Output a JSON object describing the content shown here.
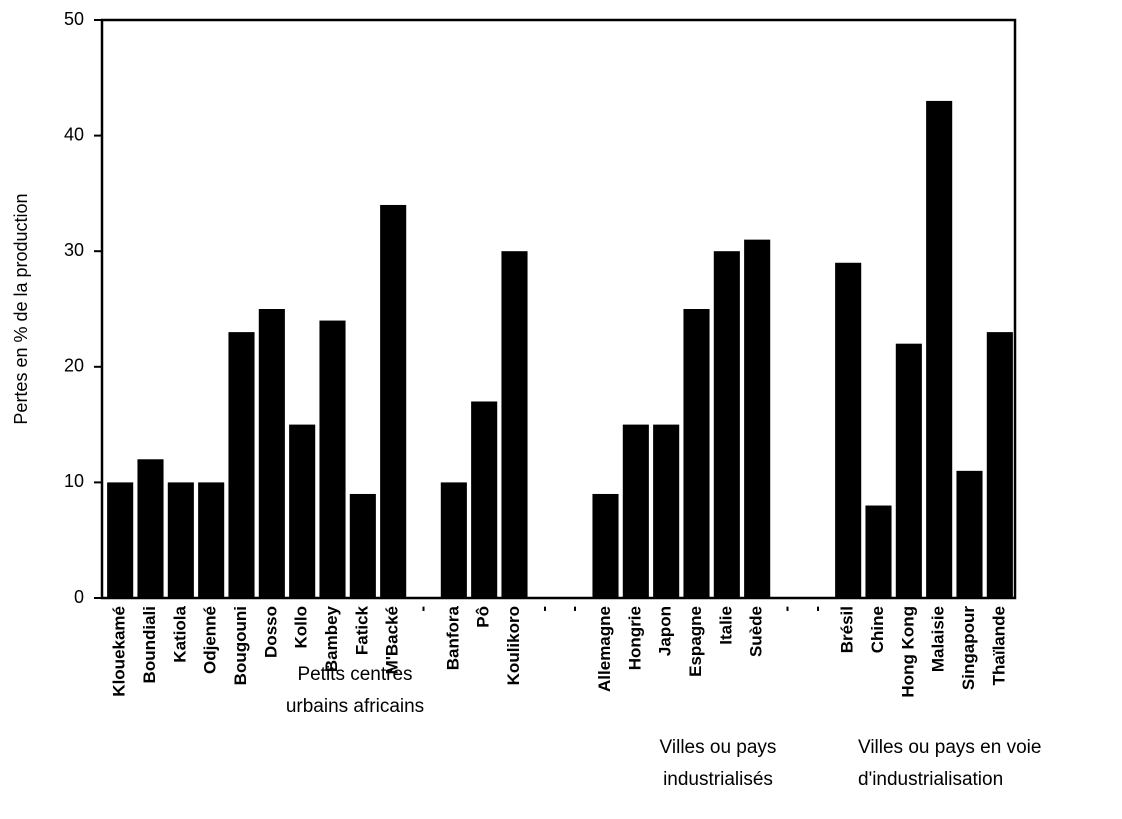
{
  "chart_data": {
    "type": "bar",
    "y_label": "Pertes en % de la production",
    "categories": [
      "Klouekamé",
      "Boundiali",
      "Katiola",
      "Odjenné",
      "Bougouni",
      "Dosso",
      "Kollo",
      "Bambey",
      "Fatick",
      "M'Backé",
      "-",
      "Banfora",
      "Pô",
      "Koulikoro",
      "-",
      "-",
      "Allemagne",
      "Hongrie",
      "Japon",
      "Espagne",
      "Italie",
      "Suède",
      "-",
      "-",
      "Brésil",
      "Chine",
      "Hong Kong",
      "Malaisie",
      "Singapour",
      "Thaïlande"
    ],
    "values": [
      10,
      12,
      10,
      10,
      23,
      25,
      15,
      24,
      9,
      34,
      null,
      10,
      17,
      30,
      null,
      null,
      9,
      15,
      15,
      25,
      30,
      31,
      null,
      null,
      29,
      8,
      22,
      43,
      11,
      23
    ],
    "color": "#000000",
    "ylim": [
      0,
      50
    ],
    "yticks": [
      0,
      10,
      20,
      30,
      40,
      50
    ],
    "grid": false,
    "annotations": [
      {
        "lines": [
          "Petits  centres",
          "urbains  africains"
        ]
      },
      {
        "lines": [
          "Villes ou pays",
          "industrialisés"
        ]
      },
      {
        "lines": [
          "Villes ou pays en voie",
          "d'industrialisation"
        ]
      }
    ]
  }
}
